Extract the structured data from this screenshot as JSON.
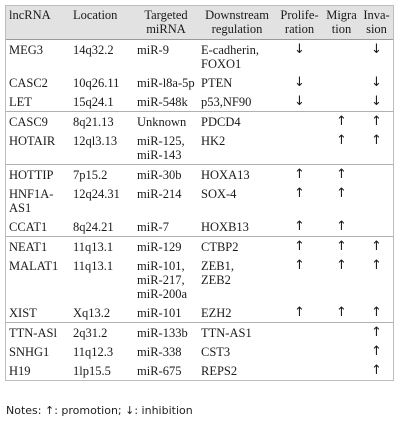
{
  "table": {
    "headers": {
      "lncrna": "lncRNA",
      "location": "Location",
      "targeted_mirna": "Targeted\nmiRNA",
      "downstream": "Downstream\nregulation",
      "proliferation": "Prolife-\nration",
      "migration": "Migra\ntion",
      "invasion": "Inva-\nsion"
    },
    "rows": [
      {
        "lncrna": "MEG3",
        "location": "14q32.2",
        "mirna": "miR-9",
        "downstream": "E-cadherin,\nFOXO1",
        "prolif": "↓",
        "migra": "",
        "inva": "↓",
        "group_end": false
      },
      {
        "lncrna": "CASC2",
        "location": "10q26.11",
        "mirna": "miR-l8a-5p",
        "downstream": "PTEN",
        "prolif": "↓",
        "migra": "",
        "inva": "↓",
        "group_end": false
      },
      {
        "lncrna": "LET",
        "location": "15q24.1",
        "mirna": "miR-548k",
        "downstream": "p53,NF90",
        "prolif": "↓",
        "migra": "",
        "inva": "↓",
        "group_end": true
      },
      {
        "lncrna": "CASC9",
        "location": "8q21.13",
        "mirna": "Unknown",
        "downstream": "PDCD4",
        "prolif": "",
        "migra": "↑",
        "inva": "↑",
        "group_end": false
      },
      {
        "lncrna": "HOTAIR",
        "location": "12ql3.13",
        "mirna": "miR-125,\nmiR-143",
        "downstream": "HK2",
        "prolif": "",
        "migra": "↑",
        "inva": "↑",
        "group_end": true
      },
      {
        "lncrna": "HOTTIP",
        "location": "7p15.2",
        "mirna": "miR-30b",
        "downstream": "HOXA13",
        "prolif": "↑",
        "migra": "↑",
        "inva": "",
        "group_end": false
      },
      {
        "lncrna": "HNF1A-\nAS1",
        "location": "12q24.31",
        "mirna": "miR-214",
        "downstream": "SOX-4",
        "prolif": "↑",
        "migra": "↑",
        "inva": "",
        "group_end": false
      },
      {
        "lncrna": "CCAT1",
        "location": "8q24.21",
        "mirna": "miR-7",
        "downstream": "HOXB13",
        "prolif": "↑",
        "migra": "↑",
        "inva": "",
        "group_end": true
      },
      {
        "lncrna": "NEAT1",
        "location": "11q13.1",
        "mirna": "miR-129",
        "downstream": "CTBP2",
        "prolif": "↑",
        "migra": "↑",
        "inva": "↑",
        "group_end": false
      },
      {
        "lncrna": "MALAT1",
        "location": "11q13.1",
        "mirna": "miR-101,\nmiR-217,\nmiR-200a",
        "downstream": "ZEB1,\nZEB2",
        "prolif": "↑",
        "migra": "↑",
        "inva": "↑",
        "group_end": false
      },
      {
        "lncrna": "XIST",
        "location": "Xq13.2",
        "mirna": "miR-101",
        "downstream": "EZH2",
        "prolif": "↑",
        "migra": "↑",
        "inva": "↑",
        "group_end": true
      },
      {
        "lncrna": "TTN-ASl",
        "location": "2q31.2",
        "mirna": "miR-133b",
        "downstream": "TTN-AS1",
        "prolif": "",
        "migra": "",
        "inva": "↑",
        "group_end": false
      },
      {
        "lncrna": "SNHG1",
        "location": "11q12.3",
        "mirna": "miR-338",
        "downstream": "CST3",
        "prolif": "",
        "migra": "",
        "inva": "↑",
        "group_end": false
      },
      {
        "lncrna": "H19",
        "location": "1lp15.5",
        "mirna": "miR-675",
        "downstream": "REPS2",
        "prolif": "",
        "migra": "",
        "inva": "↑",
        "group_end": false
      }
    ]
  },
  "notes": {
    "prefix": "Notes: ",
    "up_arrow": "↑",
    "up_text": ": promotion; ",
    "down_arrow": "↓",
    "down_text": ": inhibition"
  }
}
